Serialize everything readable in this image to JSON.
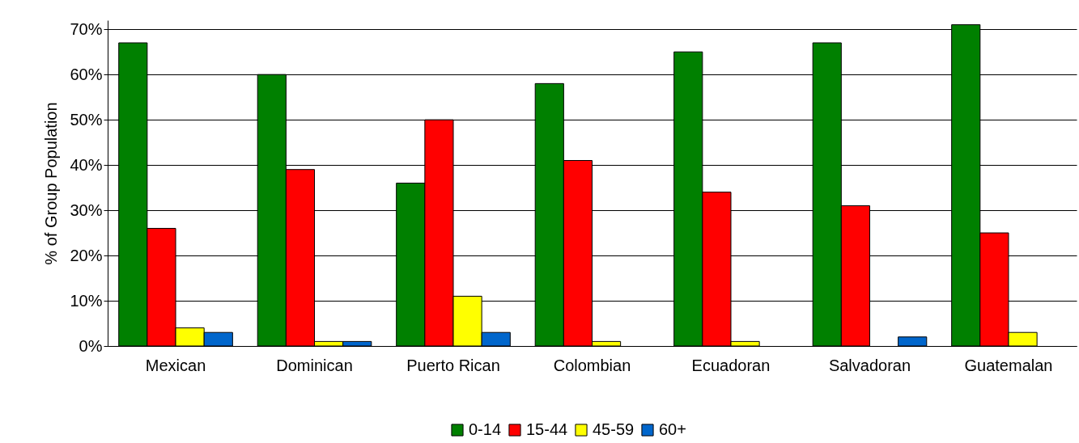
{
  "chart_data": {
    "type": "bar",
    "ylabel": "% of Group Population",
    "categories": [
      "Mexican",
      "Dominican",
      "Puerto Rican",
      "Colombian",
      "Ecuadoran",
      "Salvadoran",
      "Guatemalan"
    ],
    "series": [
      {
        "name": "0-14",
        "color": "#008000",
        "values": [
          67,
          60,
          36,
          58,
          65,
          67,
          71
        ]
      },
      {
        "name": "15-44",
        "color": "#ff0000",
        "values": [
          26,
          39,
          50,
          41,
          34,
          31,
          25
        ]
      },
      {
        "name": "45-59",
        "color": "#ffff00",
        "values": [
          4,
          1,
          11,
          1,
          1,
          null,
          3
        ]
      },
      {
        "name": "60+",
        "color": "#0066cc",
        "values": [
          3,
          1,
          3,
          null,
          null,
          2,
          null
        ]
      }
    ],
    "ylim": [
      0,
      72
    ],
    "yticks": [
      {
        "value": 0,
        "label": "0%"
      },
      {
        "value": 10,
        "label": "10%"
      },
      {
        "value": 20,
        "label": "20%"
      },
      {
        "value": 30,
        "label": "30%"
      },
      {
        "value": 40,
        "label": "40%"
      },
      {
        "value": 50,
        "label": "50%"
      },
      {
        "value": 60,
        "label": "60%"
      },
      {
        "value": 70,
        "label": "70%"
      }
    ],
    "grid": "y",
    "legend": "bottom"
  }
}
